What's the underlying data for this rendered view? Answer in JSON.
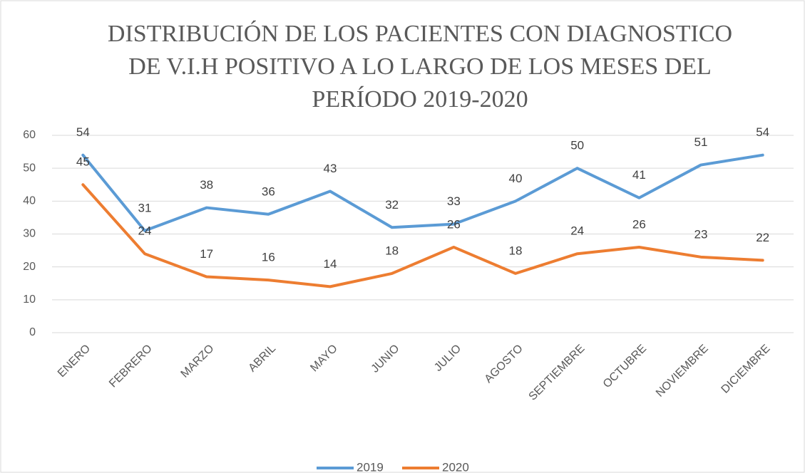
{
  "chart_data": {
    "type": "line",
    "title": "DISTRIBUCIÓN DE LOS PACIENTES CON DIAGNOSTICO DE V.I.H POSITIVO A LO LARGO DE LOS MESES DEL PERÍODO 2019-2020",
    "categories": [
      "ENERO",
      "FEBRERO",
      "MARZO",
      "ABRIL",
      "MAYO",
      "JUNIO",
      "JULIO",
      "AGOSTO",
      "SEPTIEMBRE",
      "OCTUBRE",
      "NOVIEMBRE",
      "DICIEMBRE"
    ],
    "series": [
      {
        "name": "2019",
        "color": "#5b9bd5",
        "values": [
          54,
          31,
          38,
          36,
          43,
          32,
          33,
          40,
          50,
          41,
          51,
          54
        ]
      },
      {
        "name": "2020",
        "color": "#ed7d31",
        "values": [
          45,
          24,
          17,
          16,
          14,
          18,
          26,
          18,
          24,
          26,
          23,
          22
        ]
      }
    ],
    "ylim": [
      0,
      60
    ],
    "yticks": [
      0,
      10,
      20,
      30,
      40,
      50,
      60
    ],
    "grid": true,
    "legend": "bottom"
  }
}
